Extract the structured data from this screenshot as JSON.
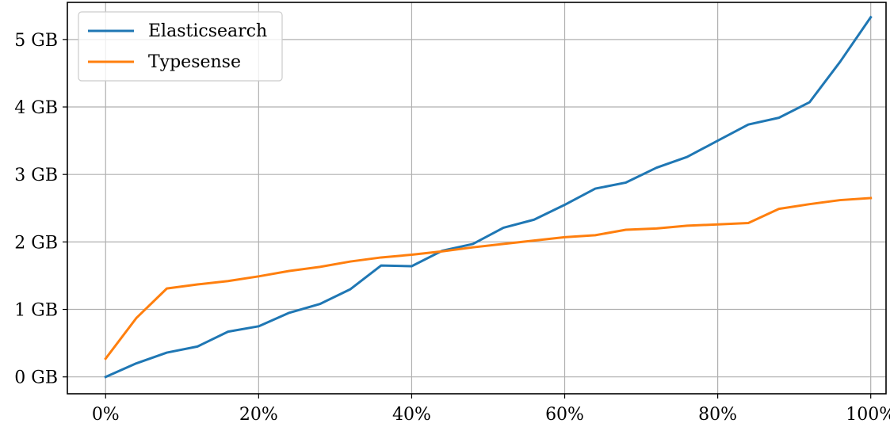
{
  "chart_data": {
    "type": "line",
    "title": "",
    "xlabel": "",
    "ylabel": "",
    "x": [
      0,
      4,
      8,
      12,
      16,
      20,
      24,
      28,
      32,
      36,
      40,
      44,
      48,
      52,
      56,
      60,
      64,
      68,
      72,
      76,
      80,
      84,
      88,
      92,
      96,
      100
    ],
    "xlim": [
      -5,
      102
    ],
    "ylim": [
      -0.25,
      5.55
    ],
    "x_ticks": [
      {
        "value": 0,
        "label": "0%"
      },
      {
        "value": 20,
        "label": "20%"
      },
      {
        "value": 40,
        "label": "40%"
      },
      {
        "value": 60,
        "label": "60%"
      },
      {
        "value": 80,
        "label": "80%"
      },
      {
        "value": 100,
        "label": "100%"
      }
    ],
    "y_ticks": [
      {
        "value": 0,
        "label": "0 GB"
      },
      {
        "value": 1,
        "label": "1 GB"
      },
      {
        "value": 2,
        "label": "2 GB"
      },
      {
        "value": 3,
        "label": "3 GB"
      },
      {
        "value": 4,
        "label": "4 GB"
      },
      {
        "value": 5,
        "label": "5 GB"
      }
    ],
    "grid": true,
    "legend_position": "top-left",
    "series": [
      {
        "name": "Elasticsearch",
        "color": "#1f77b4",
        "values": [
          0.0,
          0.2,
          0.36,
          0.45,
          0.67,
          0.75,
          0.95,
          1.08,
          1.3,
          1.65,
          1.64,
          1.87,
          1.97,
          2.21,
          2.33,
          2.55,
          2.79,
          2.88,
          3.1,
          3.26,
          3.5,
          3.74,
          3.84,
          4.07,
          4.67,
          5.33
        ]
      },
      {
        "name": "Typesense",
        "color": "#ff7f0e",
        "values": [
          0.27,
          0.87,
          1.31,
          1.37,
          1.42,
          1.49,
          1.57,
          1.63,
          1.71,
          1.77,
          1.81,
          1.86,
          1.92,
          1.97,
          2.02,
          2.07,
          2.1,
          2.18,
          2.2,
          2.24,
          2.26,
          2.28,
          2.49,
          2.56,
          2.62,
          2.65
        ]
      }
    ]
  }
}
